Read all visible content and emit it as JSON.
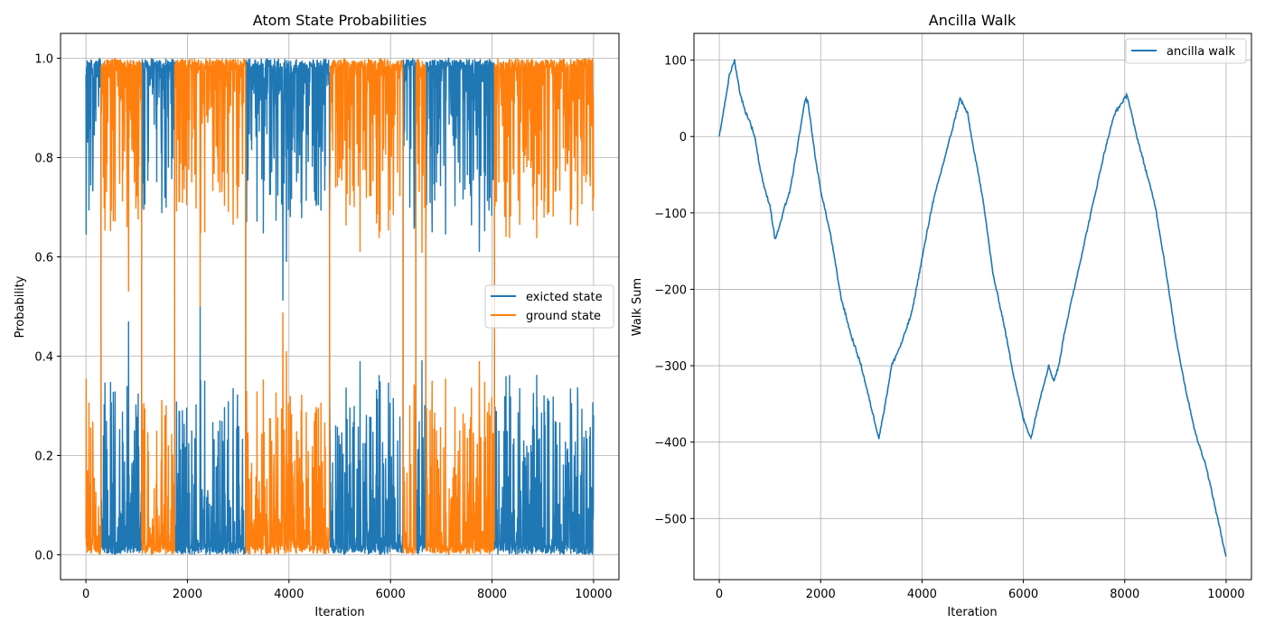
{
  "chart_data": [
    {
      "type": "line",
      "title": "Atom State Probabilities",
      "xlabel": "Iteration",
      "ylabel": "Probability",
      "xlim": [
        -500,
        10500
      ],
      "ylim": [
        -0.05,
        1.05
      ],
      "xticks": [
        0,
        2000,
        4000,
        6000,
        8000,
        10000
      ],
      "xtick_labels": [
        "0",
        "2000",
        "4000",
        "6000",
        "8000",
        "10000"
      ],
      "yticks": [
        0.0,
        0.2,
        0.4,
        0.6,
        0.8,
        1.0
      ],
      "ytick_labels": [
        "0.0",
        "0.2",
        "0.4",
        "0.6",
        "0.8",
        "1.0"
      ],
      "grid": true,
      "legend_position": "center-right",
      "regimes": [
        {
          "x_start": 0,
          "x_end": 300,
          "dominant": "exicted state"
        },
        {
          "x_start": 300,
          "x_end": 1100,
          "dominant": "ground state"
        },
        {
          "x_start": 1100,
          "x_end": 1750,
          "dominant": "exicted state"
        },
        {
          "x_start": 1750,
          "x_end": 3150,
          "dominant": "ground state"
        },
        {
          "x_start": 3150,
          "x_end": 4800,
          "dominant": "exicted state"
        },
        {
          "x_start": 4800,
          "x_end": 6250,
          "dominant": "ground state"
        },
        {
          "x_start": 6250,
          "x_end": 6500,
          "dominant": "exicted state"
        },
        {
          "x_start": 6500,
          "x_end": 6700,
          "dominant": "ground state"
        },
        {
          "x_start": 6700,
          "x_end": 8050,
          "dominant": "exicted state"
        },
        {
          "x_start": 8050,
          "x_end": 10000,
          "dominant": "ground state"
        }
      ],
      "series": [
        {
          "name": "exicted state",
          "color": "#1f77b4",
          "values_note": "complement of ground state",
          "high_level": 0.98,
          "low_level": 0.02,
          "notable_spikes": [
            {
              "x": 840,
              "y": 0.47
            },
            {
              "x": 2250,
              "y": 0.5
            },
            {
              "x": 3950,
              "y": 0.59
            },
            {
              "x": 5400,
              "y": 0.39
            },
            {
              "x": 7750,
              "y": 0.61
            },
            {
              "x": 8800,
              "y": 0.26
            }
          ]
        },
        {
          "name": "ground state",
          "color": "#ff7f0e",
          "high_level": 0.98,
          "low_level": 0.02,
          "notable_spikes": [
            {
              "x": 840,
              "y": 0.53
            },
            {
              "x": 3950,
              "y": 0.41
            },
            {
              "x": 5400,
              "y": 0.61
            },
            {
              "x": 7750,
              "y": 0.39
            },
            {
              "x": 9850,
              "y": 0.75
            }
          ]
        }
      ]
    },
    {
      "type": "line",
      "title": "Ancilla Walk",
      "xlabel": "Iteration",
      "ylabel": "Walk Sum",
      "xlim": [
        -500,
        10500
      ],
      "ylim": [
        -580,
        135
      ],
      "xticks": [
        0,
        2000,
        4000,
        6000,
        8000,
        10000
      ],
      "xtick_labels": [
        "0",
        "2000",
        "4000",
        "6000",
        "8000",
        "10000"
      ],
      "yticks": [
        100,
        0,
        -100,
        -200,
        -300,
        -400,
        -500
      ],
      "ytick_labels": [
        "100",
        "0",
        "−100",
        "−200",
        "−300",
        "−400",
        "−500"
      ],
      "grid": true,
      "legend_position": "top-right",
      "series": [
        {
          "name": "ancilla walk",
          "color": "#1f77b4",
          "x": [
            0,
            100,
            200,
            300,
            400,
            500,
            600,
            700,
            800,
            900,
            1000,
            1100,
            1200,
            1300,
            1400,
            1500,
            1600,
            1700,
            1750,
            1800,
            1900,
            2000,
            2200,
            2400,
            2600,
            2800,
            3000,
            3150,
            3300,
            3400,
            3600,
            3800,
            4000,
            4200,
            4400,
            4600,
            4750,
            4900,
            5000,
            5200,
            5400,
            5600,
            5800,
            6000,
            6150,
            6300,
            6400,
            6500,
            6600,
            6700,
            6800,
            7000,
            7200,
            7400,
            7600,
            7800,
            8000,
            8050,
            8200,
            8400,
            8600,
            8800,
            9000,
            9200,
            9400,
            9600,
            9800,
            10000
          ],
          "y": [
            0,
            40,
            80,
            100,
            60,
            35,
            20,
            0,
            -40,
            -70,
            -90,
            -135,
            -115,
            -90,
            -70,
            -30,
            10,
            50,
            45,
            20,
            -30,
            -70,
            -130,
            -210,
            -260,
            -300,
            -355,
            -395,
            -340,
            -300,
            -270,
            -230,
            -160,
            -90,
            -40,
            10,
            50,
            30,
            -10,
            -80,
            -180,
            -240,
            -310,
            -370,
            -395,
            -350,
            -325,
            -300,
            -320,
            -300,
            -260,
            -200,
            -140,
            -80,
            -20,
            30,
            50,
            55,
            10,
            -40,
            -90,
            -170,
            -260,
            -330,
            -390,
            -430,
            -490,
            -550
          ]
        }
      ]
    }
  ]
}
